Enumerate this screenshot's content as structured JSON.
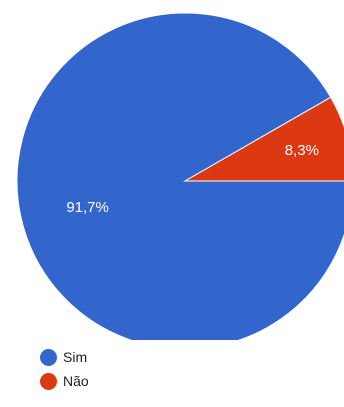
{
  "chart_data": {
    "type": "pie",
    "labels": [
      "Sim",
      "Não"
    ],
    "values": [
      91.7,
      8.3
    ],
    "value_labels": [
      "91,7%",
      "8,3%"
    ],
    "colors": [
      "#3366cc",
      "#dc3912"
    ],
    "legend_position": "bottom-left"
  },
  "legend": [
    {
      "label": "Sim",
      "color": "#3366cc"
    },
    {
      "label": "Não",
      "color": "#dc3912"
    }
  ]
}
